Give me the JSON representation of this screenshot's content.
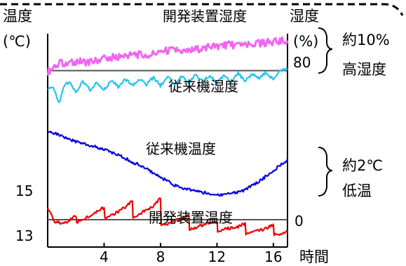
{
  "chart_data": {
    "type": "line",
    "colors": {
      "dev_humidity": "#ee66ee",
      "old_humidity": "#22c4ee",
      "old_temperature": "#0000dd",
      "dev_temperature": "#ee0000",
      "reference_line": "#555555",
      "callout_border": "#000000"
    },
    "x_axis": {
      "label": "時間",
      "range": [
        0,
        17
      ],
      "ticks": [
        4,
        8,
        12,
        16
      ],
      "tick_labels": [
        "4",
        "8",
        "12",
        "16"
      ]
    },
    "y_left": {
      "label": "温度",
      "unit": "(℃)",
      "range": [
        13,
        28.6
      ],
      "ticks": [
        13,
        15
      ],
      "tick_labels": [
        "13",
        "15"
      ]
    },
    "y_right": {
      "label": "湿度",
      "unit": "(%)",
      "ticks": [
        0,
        80
      ],
      "tick_labels": [
        "0",
        "80"
      ]
    },
    "reference_lines": [
      {
        "axis": "left",
        "value": 15
      },
      {
        "axis": "left",
        "value": 25.9
      }
    ],
    "series": [
      {
        "key": "dev_humidity",
        "name": "開発装置湿度",
        "axis": "right",
        "x": [
          0,
          0.5,
          1,
          1.5,
          2,
          3,
          4,
          5,
          6,
          7,
          8,
          9,
          10,
          11,
          12,
          13,
          14,
          15,
          16,
          17
        ],
        "y_left_scale": [
          25.8,
          26.2,
          26.5,
          26.4,
          26.6,
          26.5,
          26.8,
          26.9,
          27.1,
          27.0,
          27.3,
          27.4,
          27.3,
          27.6,
          27.7,
          27.8,
          27.7,
          27.9,
          28.0,
          28.1
        ]
      },
      {
        "key": "old_humidity",
        "name": "従来機湿度",
        "axis": "right",
        "x": [
          0,
          0.4,
          0.8,
          1.2,
          1.6,
          2,
          2.5,
          3,
          3.5,
          4,
          4.5,
          5,
          5.5,
          6,
          6.5,
          7,
          7.5,
          8,
          8.5,
          9,
          9.5,
          10,
          10.5,
          11,
          11.5,
          12,
          12.5,
          13,
          13.5,
          14,
          14.5,
          15,
          15.5,
          16,
          16.5,
          17
        ],
        "y_left_scale": [
          24.5,
          24.7,
          23.5,
          24.9,
          25.0,
          24.3,
          25.1,
          24.5,
          25.0,
          24.5,
          25.2,
          24.7,
          25.3,
          24.8,
          25.3,
          24.9,
          25.4,
          24.8,
          25.5,
          24.9,
          25.5,
          25.0,
          25.6,
          25.1,
          25.6,
          25.0,
          25.6,
          25.0,
          25.7,
          25.1,
          25.7,
          25.3,
          25.8,
          25.2,
          25.9,
          26.0
        ]
      },
      {
        "key": "old_temperature",
        "name": "従来機温度",
        "axis": "left",
        "x": [
          0,
          0.5,
          1,
          1.5,
          2,
          2.5,
          3,
          3.5,
          4,
          4.5,
          5,
          5.5,
          6,
          6.5,
          7,
          7.5,
          8,
          8.5,
          9,
          9.5,
          10,
          10.5,
          11,
          11.5,
          12,
          12.5,
          13,
          13.5,
          14,
          14.5,
          15,
          15.5,
          16,
          16.5,
          17
        ],
        "y": [
          21.5,
          21.3,
          21.1,
          20.9,
          20.7,
          20.6,
          20.4,
          20.3,
          20.1,
          19.9,
          19.7,
          19.5,
          19.2,
          19.0,
          18.7,
          18.4,
          18.1,
          17.8,
          17.5,
          17.3,
          17.2,
          17.1,
          17.0,
          16.9,
          16.8,
          16.8,
          16.9,
          17.0,
          17.2,
          17.5,
          17.8,
          18.2,
          18.6,
          19.0,
          19.4
        ]
      },
      {
        "key": "dev_temperature",
        "name": "開発装置温度",
        "axis": "left",
        "x": [
          0,
          0.5,
          1,
          1.5,
          2,
          2.05,
          2.5,
          3,
          3.5,
          4,
          4.05,
          4.5,
          5,
          5.5,
          6,
          6.05,
          6.5,
          7,
          7.5,
          8,
          8.05,
          8.5,
          9,
          9.5,
          10,
          10.05,
          10.5,
          11,
          11.5,
          12,
          12.05,
          12.5,
          13,
          13.5,
          14,
          14.05,
          14.5,
          15,
          15.5,
          16,
          16.05,
          16.5,
          17
        ],
        "y": [
          15.8,
          14.9,
          14.7,
          14.9,
          15.3,
          14.8,
          15.0,
          15.3,
          15.6,
          15.9,
          15.1,
          15.3,
          15.6,
          15.9,
          16.4,
          15.2,
          15.4,
          15.7,
          16.0,
          16.6,
          14.6,
          14.7,
          14.9,
          15.1,
          15.3,
          14.3,
          14.4,
          14.6,
          14.8,
          14.9,
          14.2,
          14.3,
          14.4,
          14.5,
          14.7,
          14.0,
          14.1,
          14.2,
          14.4,
          14.6,
          13.9,
          14.0,
          14.1
        ]
      }
    ],
    "series_labels": [
      "開発装置湿度",
      "従来機湿度",
      "従来機温度",
      "開発装置温度"
    ],
    "annotations": [
      {
        "key": "humidity_diff",
        "lines": [
          "約10%",
          "高湿度"
        ]
      },
      {
        "key": "temperature_diff",
        "lines": [
          "約2℃",
          "低温"
        ]
      }
    ]
  }
}
